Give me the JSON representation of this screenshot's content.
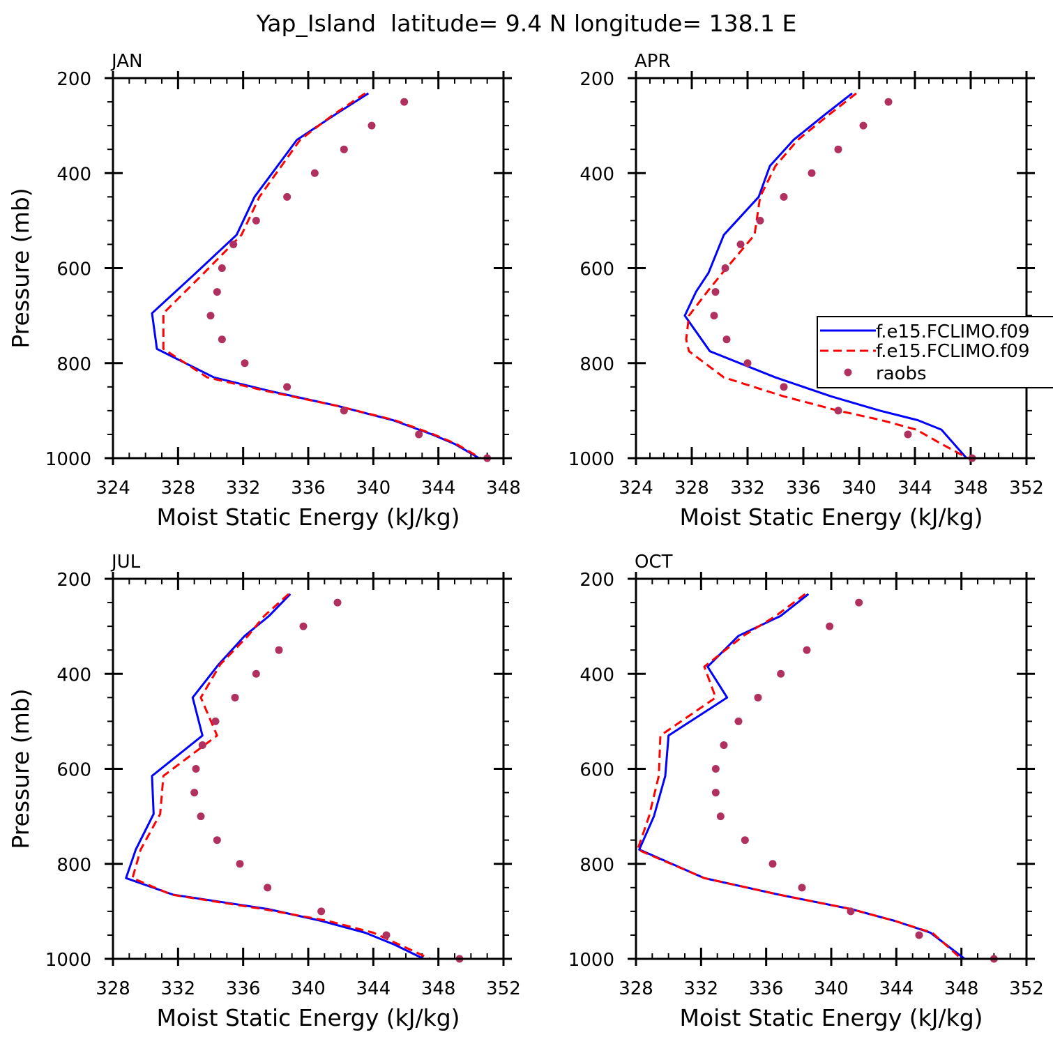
{
  "title": "Yap_Island  latitude= 9.4 N longitude= 138.1 E",
  "legend": {
    "entries": [
      {
        "label": "f.e15.FCLIMO.f09",
        "style": "line",
        "color": "#0000ff"
      },
      {
        "label": "f.e15.FCLIMO.f09",
        "style": "dashed",
        "color": "#ff0000"
      },
      {
        "label": "raobs",
        "style": "dot",
        "color": "#b03060"
      }
    ]
  },
  "chart_data": [
    {
      "type": "line",
      "title": "JAN",
      "xlabel": "Moist Static Energy (kJ/kg)",
      "ylabel": "Pressure (mb)",
      "xlim": [
        324,
        348
      ],
      "xticks": [
        324,
        328,
        332,
        336,
        340,
        344,
        348
      ],
      "ylim": [
        200,
        1000
      ],
      "yticks": [
        200,
        400,
        600,
        800,
        1000
      ],
      "series": [
        {
          "name": "f.e15.FCLIMO.f09",
          "style": "solid",
          "color": "#0000ff",
          "x": [
            339.7,
            337.6,
            335.3,
            332.7,
            331.6,
            329.1,
            326.4,
            326.7,
            330.2,
            333.8,
            337.8,
            341.2,
            343.6,
            345.0,
            346.5
          ],
          "y": [
            232,
            278,
            330,
            450,
            530,
            610,
            695,
            770,
            830,
            860,
            890,
            920,
            950,
            970,
            1000
          ]
        },
        {
          "name": "f.e15.FCLIMO.f09",
          "style": "dashed",
          "color": "#ff0000",
          "x": [
            339.5,
            337.5,
            335.5,
            333.0,
            331.9,
            329.6,
            327.1,
            327.1,
            329.8,
            333.6,
            337.8,
            341.3,
            343.7,
            345.1,
            346.6
          ],
          "y": [
            232,
            278,
            330,
            450,
            530,
            610,
            695,
            770,
            830,
            860,
            890,
            920,
            950,
            970,
            1000
          ]
        },
        {
          "name": "raobs",
          "style": "dot",
          "color": "#b03060",
          "x": [
            341.9,
            339.9,
            338.2,
            336.4,
            334.7,
            332.8,
            331.4,
            330.7,
            330.4,
            330.0,
            330.7,
            332.1,
            334.7,
            338.2,
            342.8,
            347.0
          ],
          "y": [
            250,
            300,
            350,
            400,
            450,
            500,
            550,
            600,
            650,
            700,
            750,
            800,
            850,
            900,
            950,
            1000
          ]
        }
      ]
    },
    {
      "type": "line",
      "title": "APR",
      "xlabel": "Moist Static Energy (kJ/kg)",
      "ylabel": "",
      "xlim": [
        324,
        352
      ],
      "xticks": [
        324,
        328,
        332,
        336,
        340,
        344,
        348,
        352
      ],
      "ylim": [
        200,
        1000
      ],
      "yticks": [
        200,
        400,
        600,
        800,
        1000
      ],
      "series": [
        {
          "name": "f.e15.FCLIMO.f09",
          "style": "solid",
          "color": "#0000ff",
          "x": [
            339.5,
            337.5,
            335.3,
            333.6,
            332.8,
            330.3,
            329.2,
            328.3,
            327.5,
            329.3,
            334.0,
            338.0,
            341.5,
            344.2,
            345.9,
            347.7
          ],
          "y": [
            232,
            278,
            330,
            385,
            450,
            530,
            610,
            650,
            700,
            775,
            830,
            870,
            900,
            920,
            940,
            1000
          ]
        },
        {
          "name": "f.e15.FCLIMO.f09",
          "style": "dashed",
          "color": "#ff0000",
          "x": [
            339.8,
            337.8,
            335.6,
            334.0,
            332.9,
            332.5,
            330.2,
            329.1,
            327.8,
            327.6,
            327.8,
            330.3,
            334.6,
            338.5,
            341.6,
            344.1,
            345.9,
            347.8
          ],
          "y": [
            232,
            278,
            330,
            385,
            450,
            530,
            610,
            650,
            700,
            750,
            775,
            830,
            870,
            900,
            920,
            940,
            970,
            1000
          ]
        },
        {
          "name": "raobs",
          "style": "dot",
          "color": "#b03060",
          "x": [
            342.1,
            340.3,
            338.5,
            336.6,
            334.6,
            332.9,
            331.5,
            330.4,
            329.7,
            329.6,
            330.5,
            332.0,
            334.6,
            338.5,
            343.5,
            348.1
          ],
          "y": [
            250,
            300,
            350,
            400,
            450,
            500,
            550,
            600,
            650,
            700,
            750,
            800,
            850,
            900,
            950,
            1000
          ]
        }
      ]
    },
    {
      "type": "line",
      "title": "JUL",
      "xlabel": "Moist Static Energy (kJ/kg)",
      "ylabel": "Pressure (mb)",
      "xlim": [
        328,
        352
      ],
      "xticks": [
        328,
        332,
        336,
        340,
        344,
        348,
        352
      ],
      "ylim": [
        200,
        1000
      ],
      "yticks": [
        200,
        400,
        600,
        800,
        1000
      ],
      "series": [
        {
          "name": "f.e15.FCLIMO.f09",
          "style": "solid",
          "color": "#0000ff",
          "x": [
            338.9,
            337.6,
            336.1,
            334.5,
            332.9,
            333.5,
            330.4,
            330.5,
            329.4,
            328.8,
            331.7,
            337.5,
            340.8,
            343.5,
            345.3,
            347.1
          ],
          "y": [
            232,
            278,
            320,
            380,
            450,
            530,
            615,
            695,
            770,
            830,
            865,
            895,
            920,
            945,
            970,
            1000
          ]
        },
        {
          "name": "f.e15.FCLIMO.f09",
          "style": "dashed",
          "color": "#ff0000",
          "x": [
            338.8,
            337.3,
            336.3,
            334.6,
            333.4,
            334.4,
            331.1,
            330.9,
            329.7,
            329.2,
            331.6,
            337.2,
            341.2,
            344.0,
            345.6,
            347.5
          ],
          "y": [
            232,
            278,
            320,
            380,
            450,
            530,
            615,
            695,
            770,
            830,
            865,
            895,
            920,
            945,
            970,
            1000
          ]
        },
        {
          "name": "raobs",
          "style": "dot",
          "color": "#b03060",
          "x": [
            341.8,
            339.7,
            338.2,
            336.8,
            335.5,
            334.3,
            333.5,
            333.1,
            333.0,
            333.4,
            334.4,
            335.8,
            337.5,
            340.8,
            344.8,
            349.3
          ],
          "y": [
            250,
            300,
            350,
            400,
            450,
            500,
            550,
            600,
            650,
            700,
            750,
            800,
            850,
            900,
            950,
            1000
          ]
        }
      ]
    },
    {
      "type": "line",
      "title": "OCT",
      "xlabel": "Moist Static Energy (kJ/kg)",
      "ylabel": "",
      "xlim": [
        328,
        352
      ],
      "xticks": [
        328,
        332,
        336,
        340,
        344,
        348,
        352
      ],
      "ylim": [
        200,
        1000
      ],
      "yticks": [
        200,
        400,
        600,
        800,
        1000
      ],
      "series": [
        {
          "name": "f.e15.FCLIMO.f09",
          "style": "solid",
          "color": "#0000ff",
          "x": [
            338.6,
            336.9,
            334.3,
            332.4,
            333.6,
            330.0,
            329.8,
            329.1,
            328.2,
            332.2,
            336.8,
            341.2,
            343.9,
            346.1,
            348.2
          ],
          "y": [
            232,
            278,
            320,
            385,
            450,
            530,
            615,
            700,
            770,
            830,
            865,
            895,
            920,
            945,
            1000
          ]
        },
        {
          "name": "f.e15.FCLIMO.f09",
          "style": "dashed",
          "color": "#ff0000",
          "x": [
            338.4,
            336.6,
            334.6,
            332.2,
            332.9,
            329.5,
            329.4,
            328.8,
            328.1,
            332.2,
            336.8,
            341.2,
            343.9,
            346.2,
            348.0
          ],
          "y": [
            232,
            278,
            320,
            385,
            450,
            530,
            615,
            700,
            770,
            830,
            865,
            895,
            920,
            945,
            1000
          ]
        },
        {
          "name": "raobs",
          "style": "dot",
          "color": "#b03060",
          "x": [
            341.7,
            339.9,
            338.5,
            336.9,
            335.5,
            334.3,
            333.4,
            332.9,
            332.9,
            333.2,
            334.7,
            336.4,
            338.2,
            341.2,
            345.4,
            350.0
          ],
          "y": [
            250,
            300,
            350,
            400,
            450,
            500,
            550,
            600,
            650,
            700,
            750,
            800,
            850,
            900,
            950,
            1000
          ]
        }
      ]
    }
  ]
}
